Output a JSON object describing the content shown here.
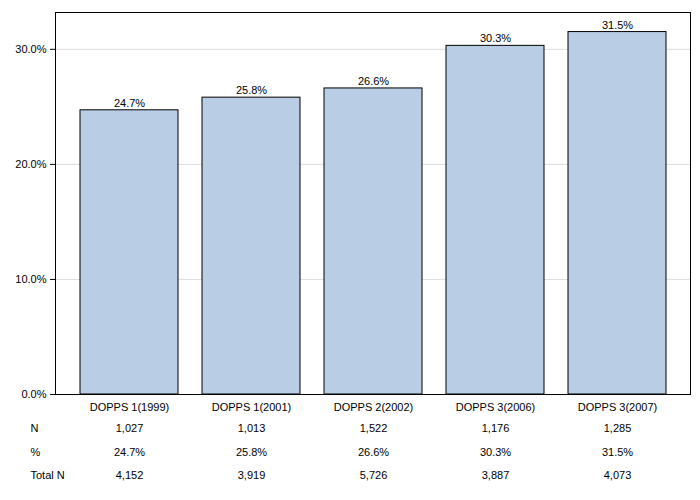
{
  "chart_data": {
    "type": "bar",
    "categories": [
      "DOPPS 1(1999)",
      "DOPPS 1(2001)",
      "DOPPS 2(2002)",
      "DOPPS 3(2006)",
      "DOPPS 3(2007)"
    ],
    "values": [
      24.7,
      25.8,
      26.6,
      30.3,
      31.5
    ],
    "value_labels": [
      "24.7%",
      "25.8%",
      "26.6%",
      "30.3%",
      "31.5%"
    ],
    "data_labels": true,
    "color": "#b9cde5",
    "ylim": [
      0,
      33.2
    ],
    "yticks": [
      {
        "value": 0,
        "label": "0.0%"
      },
      {
        "value": 10,
        "label": "10.0%"
      },
      {
        "value": 20,
        "label": "20.0%"
      },
      {
        "value": 30,
        "label": "30.0%"
      }
    ],
    "grid": true,
    "table": {
      "rows": [
        {
          "label": "N",
          "cells": [
            "1,027",
            "1,013",
            "1,522",
            "1,176",
            "1,285"
          ]
        },
        {
          "label": "%",
          "cells": [
            "24.7%",
            "25.8%",
            "26.6%",
            "30.3%",
            "31.5%"
          ]
        },
        {
          "label": "Total N",
          "cells": [
            "4,152",
            "3,919",
            "5,726",
            "3,887",
            "4,073"
          ]
        }
      ]
    }
  }
}
